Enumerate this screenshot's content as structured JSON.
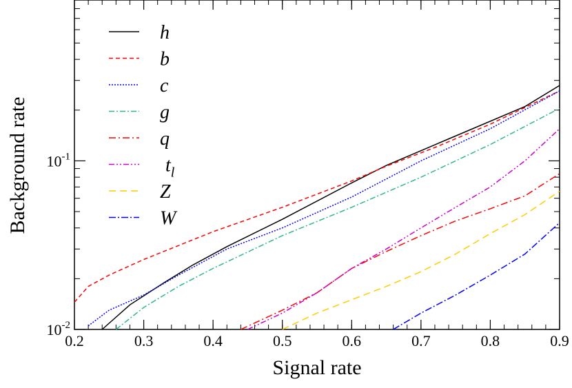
{
  "chart_data": {
    "type": "line",
    "title": "",
    "xlabel": "Signal rate",
    "ylabel": "Background rate",
    "xlim": [
      0.2,
      0.9
    ],
    "ylim": [
      0.01,
      0.9
    ],
    "yscale": "log",
    "grid": false,
    "legend_position": "top-left",
    "x_tick_labels": [
      "0.2",
      "0.3",
      "0.4",
      "0.5",
      "0.6",
      "0.7",
      "0.8",
      "0.9"
    ],
    "y_tick_labels": [
      {
        "base": "10",
        "exp": "-2",
        "value": 0.01
      },
      {
        "base": "10",
        "exp": "-1",
        "value": 0.1
      }
    ],
    "series": [
      {
        "name": "h",
        "color": "#000000",
        "dash": "",
        "x": [
          0.24,
          0.28,
          0.33,
          0.37,
          0.42,
          0.5,
          0.6,
          0.65,
          0.74,
          0.85,
          0.9
        ],
        "y": [
          0.01,
          0.014,
          0.019,
          0.024,
          0.031,
          0.045,
          0.074,
          0.094,
          0.135,
          0.21,
          0.28
        ]
      },
      {
        "name": "b",
        "color": "#ff0000",
        "dash": "6,4",
        "x": [
          0.2,
          0.22,
          0.25,
          0.3,
          0.4,
          0.5,
          0.6,
          0.65,
          0.72,
          0.8,
          0.9
        ],
        "y": [
          0.0145,
          0.018,
          0.021,
          0.026,
          0.038,
          0.053,
          0.076,
          0.093,
          0.12,
          0.165,
          0.26
        ]
      },
      {
        "name": "c",
        "color": "#0000ff",
        "dash": "2,2",
        "x": [
          0.22,
          0.25,
          0.3,
          0.35,
          0.42,
          0.5,
          0.6,
          0.7,
          0.8,
          0.9
        ],
        "y": [
          0.0105,
          0.013,
          0.016,
          0.021,
          0.03,
          0.04,
          0.061,
          0.1,
          0.155,
          0.26
        ]
      },
      {
        "name": "g",
        "color": "#2eb88a",
        "dash": "8,3,2,3",
        "x": [
          0.26,
          0.3,
          0.35,
          0.4,
          0.5,
          0.6,
          0.7,
          0.8,
          0.9
        ],
        "y": [
          0.01,
          0.0135,
          0.018,
          0.023,
          0.036,
          0.053,
          0.08,
          0.125,
          0.205
        ]
      },
      {
        "name": "q",
        "color": "#ff0000",
        "dash": "10,4,2,4",
        "x": [
          0.44,
          0.5,
          0.55,
          0.6,
          0.65,
          0.7,
          0.75,
          0.8,
          0.85,
          0.9
        ],
        "y": [
          0.01,
          0.013,
          0.0165,
          0.023,
          0.029,
          0.036,
          0.044,
          0.052,
          0.062,
          0.084
        ]
      },
      {
        "name": "t_l",
        "label_main": "t",
        "label_sub": "l",
        "color": "#cc00cc",
        "dash": "8,3,2,3,2,3",
        "x": [
          0.45,
          0.5,
          0.55,
          0.6,
          0.65,
          0.7,
          0.75,
          0.8,
          0.85,
          0.9
        ],
        "y": [
          0.01,
          0.0125,
          0.0165,
          0.023,
          0.03,
          0.04,
          0.053,
          0.07,
          0.1,
          0.155
        ]
      },
      {
        "name": "Z",
        "color": "#ffcc00",
        "dash": "10,6",
        "x": [
          0.5,
          0.55,
          0.6,
          0.65,
          0.7,
          0.75,
          0.8,
          0.85,
          0.9
        ],
        "y": [
          0.01,
          0.0125,
          0.015,
          0.018,
          0.022,
          0.028,
          0.037,
          0.048,
          0.066
        ]
      },
      {
        "name": "W",
        "color": "#0000ff",
        "dash": "10,3,2,3",
        "x": [
          0.66,
          0.7,
          0.75,
          0.8,
          0.85,
          0.9
        ],
        "y": [
          0.01,
          0.0125,
          0.016,
          0.021,
          0.028,
          0.043
        ]
      }
    ]
  }
}
